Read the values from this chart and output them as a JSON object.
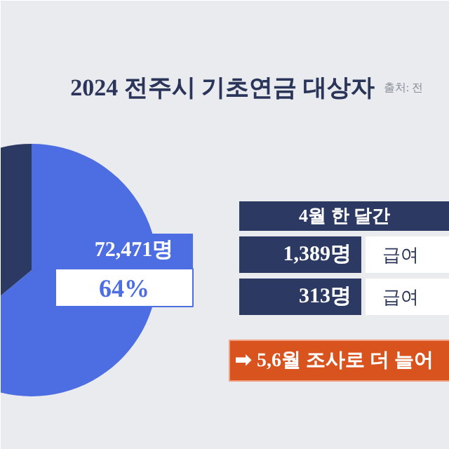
{
  "chart_data": {
    "type": "pie",
    "title": "2024 전주시 기초연금 대상자",
    "categories": [
      null,
      null
    ],
    "values": [
      36,
      64
    ],
    "colors": [
      "#2c3a63",
      "#4d6de3"
    ],
    "value_labels": [
      null,
      "64%"
    ],
    "annotations": [
      "72,471명",
      "출처: 전",
      "4월 한 달간",
      "1,389명",
      "급여",
      "313명",
      "급여",
      "➡ 5,6월 조사로 더 늘어"
    ]
  }
}
